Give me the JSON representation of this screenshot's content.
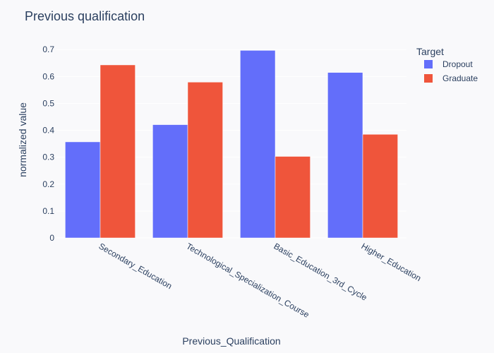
{
  "chart_data": {
    "type": "bar",
    "title": "Previous qualification",
    "xlabel": "Previous_Qualification",
    "ylabel": "normalized value",
    "categories": [
      "Secondary_Education",
      "Technological_Specialization_Course",
      "Basic_Education_3rd_Cycle",
      "Higher_Education"
    ],
    "series": [
      {
        "name": "Dropout",
        "color": "#636efa",
        "values": [
          0.357,
          0.421,
          0.697,
          0.615
        ]
      },
      {
        "name": "Graduate",
        "color": "#ef553b",
        "values": [
          0.643,
          0.579,
          0.303,
          0.385
        ]
      }
    ],
    "ylim": [
      0,
      0.74
    ],
    "yticks": [
      0,
      0.1,
      0.2,
      0.3,
      0.4,
      0.5,
      0.6,
      0.7
    ],
    "ytick_labels": [
      "0",
      "0.1",
      "0.2",
      "0.3",
      "0.4",
      "0.5",
      "0.6",
      "0.7"
    ],
    "grid": true,
    "legend": {
      "title": "Target",
      "placement": "top-right"
    }
  }
}
